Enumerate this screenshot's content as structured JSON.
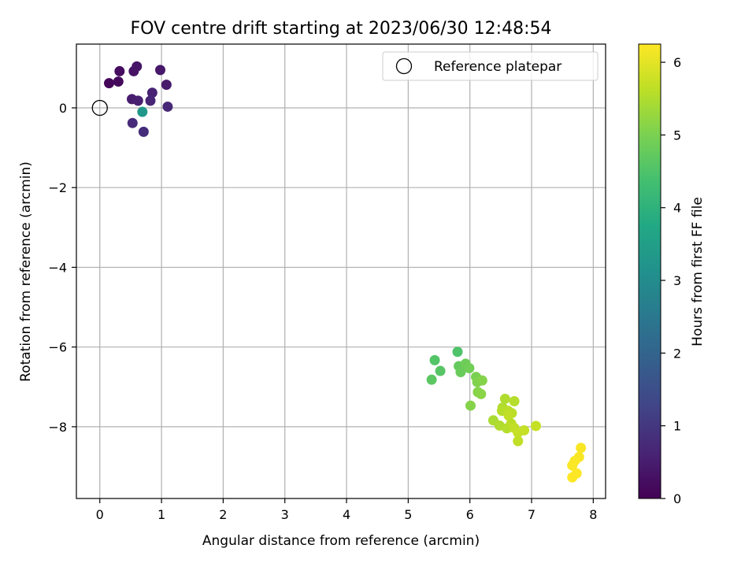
{
  "chart_data": {
    "type": "scatter",
    "title": "FOV centre drift starting at 2023/06/30 12:48:54",
    "xlabel": "Angular distance from reference (arcmin)",
    "ylabel": "Rotation from reference (arcmin)",
    "xlim": [
      -0.38,
      8.2
    ],
    "ylim": [
      -9.8,
      1.6
    ],
    "xticks": [
      0,
      1,
      2,
      3,
      4,
      5,
      6,
      7,
      8
    ],
    "yticks": [
      0,
      -2,
      -4,
      -6,
      -8
    ],
    "grid": true,
    "legend": {
      "placement": "top-right",
      "entries": [
        "Reference platepar"
      ]
    },
    "reference_point": {
      "x": 0,
      "y": 0,
      "label": "Reference platepar"
    },
    "colorbar": {
      "label": "Hours from first FF file",
      "range": [
        0,
        6.25
      ],
      "ticks": [
        0,
        1,
        2,
        3,
        4,
        5,
        6
      ],
      "colormap": "viridis"
    },
    "points": [
      {
        "x": 0.15,
        "y": 0.62,
        "c": 0.1
      },
      {
        "x": 0.3,
        "y": 0.66,
        "c": 0.15
      },
      {
        "x": 0.32,
        "y": 0.92,
        "c": 0.2
      },
      {
        "x": 0.55,
        "y": 0.92,
        "c": 0.3
      },
      {
        "x": 0.6,
        "y": 1.04,
        "c": 0.35
      },
      {
        "x": 0.98,
        "y": 0.95,
        "c": 0.4
      },
      {
        "x": 1.08,
        "y": 0.58,
        "c": 0.45
      },
      {
        "x": 0.52,
        "y": 0.22,
        "c": 0.5
      },
      {
        "x": 0.62,
        "y": 0.18,
        "c": 0.55
      },
      {
        "x": 0.85,
        "y": 0.38,
        "c": 0.6
      },
      {
        "x": 0.82,
        "y": 0.18,
        "c": 0.65
      },
      {
        "x": 1.1,
        "y": 0.03,
        "c": 0.7
      },
      {
        "x": 0.53,
        "y": -0.38,
        "c": 0.75
      },
      {
        "x": 0.71,
        "y": -0.6,
        "c": 0.8
      },
      {
        "x": 0.69,
        "y": -0.1,
        "c": 3.3
      },
      {
        "x": 5.8,
        "y": -6.12,
        "c": 4.5
      },
      {
        "x": 5.43,
        "y": -6.33,
        "c": 4.55
      },
      {
        "x": 5.52,
        "y": -6.6,
        "c": 4.6
      },
      {
        "x": 5.38,
        "y": -6.82,
        "c": 4.65
      },
      {
        "x": 5.82,
        "y": -6.48,
        "c": 4.75
      },
      {
        "x": 5.85,
        "y": -6.63,
        "c": 4.8
      },
      {
        "x": 5.93,
        "y": -6.42,
        "c": 4.85
      },
      {
        "x": 5.99,
        "y": -6.53,
        "c": 4.9
      },
      {
        "x": 6.1,
        "y": -6.75,
        "c": 5.0
      },
      {
        "x": 6.12,
        "y": -6.88,
        "c": 5.05
      },
      {
        "x": 6.2,
        "y": -6.84,
        "c": 5.1
      },
      {
        "x": 6.13,
        "y": -7.13,
        "c": 5.1
      },
      {
        "x": 6.18,
        "y": -7.18,
        "c": 5.15
      },
      {
        "x": 6.01,
        "y": -7.47,
        "c": 5.1
      },
      {
        "x": 6.57,
        "y": -7.3,
        "c": 5.5
      },
      {
        "x": 6.72,
        "y": -7.36,
        "c": 5.55
      },
      {
        "x": 6.53,
        "y": -7.52,
        "c": 5.5
      },
      {
        "x": 6.52,
        "y": -7.6,
        "c": 5.55
      },
      {
        "x": 6.62,
        "y": -7.6,
        "c": 5.6
      },
      {
        "x": 6.68,
        "y": -7.66,
        "c": 5.6
      },
      {
        "x": 6.63,
        "y": -7.72,
        "c": 5.65
      },
      {
        "x": 6.38,
        "y": -7.84,
        "c": 5.45
      },
      {
        "x": 6.48,
        "y": -7.97,
        "c": 5.5
      },
      {
        "x": 6.6,
        "y": -8.04,
        "c": 5.55
      },
      {
        "x": 6.67,
        "y": -7.92,
        "c": 5.6
      },
      {
        "x": 6.72,
        "y": -8.03,
        "c": 5.65
      },
      {
        "x": 6.78,
        "y": -8.15,
        "c": 5.7
      },
      {
        "x": 6.88,
        "y": -8.09,
        "c": 5.7
      },
      {
        "x": 6.78,
        "y": -8.36,
        "c": 5.65
      },
      {
        "x": 7.07,
        "y": -7.98,
        "c": 5.7
      },
      {
        "x": 7.8,
        "y": -8.53,
        "c": 6.2
      },
      {
        "x": 7.77,
        "y": -8.76,
        "c": 6.2
      },
      {
        "x": 7.7,
        "y": -8.86,
        "c": 6.22
      },
      {
        "x": 7.66,
        "y": -8.97,
        "c": 6.22
      },
      {
        "x": 7.73,
        "y": -9.17,
        "c": 6.24
      },
      {
        "x": 7.66,
        "y": -9.27,
        "c": 6.25
      }
    ]
  }
}
